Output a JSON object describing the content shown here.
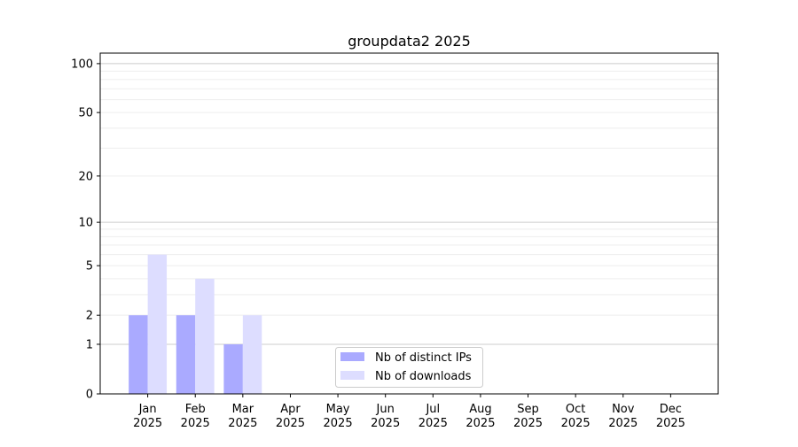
{
  "chart_data": {
    "type": "bar",
    "title": "groupdata2 2025",
    "xlabel": "",
    "ylabel": "",
    "categories": [
      "Jan\n2025",
      "Feb\n2025",
      "Mar\n2025",
      "Apr\n2025",
      "May\n2025",
      "Jun\n2025",
      "Jul\n2025",
      "Aug\n2025",
      "Sep\n2025",
      "Oct\n2025",
      "Nov\n2025",
      "Dec\n2025"
    ],
    "series": [
      {
        "name": "Nb of distinct IPs",
        "color": "#aaaaff",
        "values": [
          2,
          2,
          1,
          0,
          0,
          0,
          0,
          0,
          0,
          0,
          0,
          0
        ]
      },
      {
        "name": "Nb of downloads",
        "color": "#ddddff",
        "values": [
          6,
          4,
          2,
          0,
          0,
          0,
          0,
          0,
          0,
          0,
          0,
          0
        ]
      }
    ],
    "yscale": "log(1+y)",
    "ylim": [
      0,
      116
    ],
    "yticks": [
      0,
      1,
      2,
      5,
      10,
      20,
      50,
      100
    ],
    "grid": true,
    "legend": "lower-center"
  }
}
